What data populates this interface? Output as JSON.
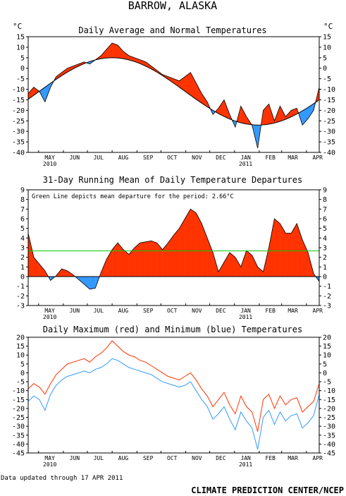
{
  "title": "BARROW, ALASKA",
  "footer": {
    "updated": "Data updated through 17 APR 2011",
    "credit": "CLIMATE PREDICTION CENTER/NCEP"
  },
  "months": [
    "MAY",
    "JUN",
    "JUL",
    "AUG",
    "SEP",
    "OCT",
    "NOV",
    "DEC",
    "JAN",
    "FEB",
    "MAR",
    "APR"
  ],
  "years": {
    "first": "2010",
    "second": "2011"
  },
  "chart_data": [
    {
      "type": "area",
      "title": "Daily Average and Normal Temperatures",
      "unit_left": "°C",
      "unit_right": "°C",
      "ylim": [
        -40,
        15
      ],
      "yticks": [
        15,
        10,
        5,
        0,
        -5,
        -10,
        -15,
        -20,
        -25,
        -30,
        -35,
        -40
      ],
      "x_start": "2010-04-18",
      "x_end": "2011-04-17",
      "colors": {
        "above": "#ff3300",
        "below": "#3399ff",
        "normal": "#000000"
      },
      "normal_min": {
        "date": "2011-02-01",
        "value": -27
      },
      "normal_max": {
        "date": "2010-08-01",
        "value": 5
      },
      "daily_average": [
        {
          "x": "2010-04-18",
          "y": -12
        },
        {
          "x": "2010-04-25",
          "y": -9
        },
        {
          "x": "2010-05-02",
          "y": -11
        },
        {
          "x": "2010-05-09",
          "y": -16
        },
        {
          "x": "2010-05-16",
          "y": -9
        },
        {
          "x": "2010-05-23",
          "y": -4
        },
        {
          "x": "2010-05-30",
          "y": -2
        },
        {
          "x": "2010-06-06",
          "y": 0
        },
        {
          "x": "2010-06-13",
          "y": 1
        },
        {
          "x": "2010-06-20",
          "y": 2
        },
        {
          "x": "2010-06-27",
          "y": 3
        },
        {
          "x": "2010-07-04",
          "y": 2
        },
        {
          "x": "2010-07-11",
          "y": 4
        },
        {
          "x": "2010-07-18",
          "y": 6
        },
        {
          "x": "2010-07-25",
          "y": 9
        },
        {
          "x": "2010-08-01",
          "y": 12
        },
        {
          "x": "2010-08-08",
          "y": 11
        },
        {
          "x": "2010-08-15",
          "y": 8
        },
        {
          "x": "2010-08-22",
          "y": 6
        },
        {
          "x": "2010-08-29",
          "y": 5
        },
        {
          "x": "2010-09-05",
          "y": 4
        },
        {
          "x": "2010-09-12",
          "y": 3
        },
        {
          "x": "2010-09-19",
          "y": 1
        },
        {
          "x": "2010-09-26",
          "y": -1
        },
        {
          "x": "2010-10-03",
          "y": -3
        },
        {
          "x": "2010-10-10",
          "y": -4
        },
        {
          "x": "2010-10-17",
          "y": -5
        },
        {
          "x": "2010-10-24",
          "y": -6
        },
        {
          "x": "2010-10-31",
          "y": -4
        },
        {
          "x": "2010-11-07",
          "y": -2
        },
        {
          "x": "2010-11-14",
          "y": -7
        },
        {
          "x": "2010-11-21",
          "y": -12
        },
        {
          "x": "2010-11-28",
          "y": -16
        },
        {
          "x": "2010-12-05",
          "y": -22
        },
        {
          "x": "2010-12-12",
          "y": -19
        },
        {
          "x": "2010-12-19",
          "y": -15
        },
        {
          "x": "2010-12-26",
          "y": -22
        },
        {
          "x": "2011-01-02",
          "y": -28
        },
        {
          "x": "2011-01-09",
          "y": -18
        },
        {
          "x": "2011-01-16",
          "y": -23
        },
        {
          "x": "2011-01-23",
          "y": -27
        },
        {
          "x": "2011-01-30",
          "y": -38
        },
        {
          "x": "2011-02-06",
          "y": -20
        },
        {
          "x": "2011-02-13",
          "y": -17
        },
        {
          "x": "2011-02-20",
          "y": -25
        },
        {
          "x": "2011-02-27",
          "y": -18
        },
        {
          "x": "2011-03-06",
          "y": -23
        },
        {
          "x": "2011-03-13",
          "y": -20
        },
        {
          "x": "2011-03-20",
          "y": -19
        },
        {
          "x": "2011-03-27",
          "y": -27
        },
        {
          "x": "2011-04-03",
          "y": -24
        },
        {
          "x": "2011-04-10",
          "y": -20
        },
        {
          "x": "2011-04-17",
          "y": -9
        }
      ]
    },
    {
      "type": "area",
      "title": "31-Day Running Mean of Daily Temperature Departures",
      "annotation": "Green Line depicts mean departure for the period: 2.66°C",
      "mean_departure": 2.66,
      "ylim": [
        -3,
        9
      ],
      "yticks": [
        9,
        8,
        7,
        6,
        5,
        4,
        3,
        2,
        1,
        0,
        -1,
        -2,
        -3
      ],
      "x_start": "2010-04-18",
      "x_end": "2011-04-17",
      "colors": {
        "above": "#ff3300",
        "below": "#3399ff",
        "mean_line": "#00cc00"
      },
      "departure": [
        {
          "x": "2010-04-18",
          "y": 4.5
        },
        {
          "x": "2010-04-25",
          "y": 2.0
        },
        {
          "x": "2010-05-02",
          "y": 1.3
        },
        {
          "x": "2010-05-09",
          "y": 0.6
        },
        {
          "x": "2010-05-16",
          "y": -0.4
        },
        {
          "x": "2010-05-23",
          "y": 0.1
        },
        {
          "x": "2010-05-30",
          "y": 0.8
        },
        {
          "x": "2010-06-06",
          "y": 0.6
        },
        {
          "x": "2010-06-13",
          "y": 0.2
        },
        {
          "x": "2010-06-20",
          "y": -0.3
        },
        {
          "x": "2010-06-27",
          "y": -0.8
        },
        {
          "x": "2010-07-04",
          "y": -1.3
        },
        {
          "x": "2010-07-11",
          "y": -1.2
        },
        {
          "x": "2010-07-18",
          "y": 0.4
        },
        {
          "x": "2010-07-25",
          "y": 1.8
        },
        {
          "x": "2010-08-01",
          "y": 2.8
        },
        {
          "x": "2010-08-08",
          "y": 3.5
        },
        {
          "x": "2010-08-15",
          "y": 2.8
        },
        {
          "x": "2010-08-22",
          "y": 2.3
        },
        {
          "x": "2010-08-29",
          "y": 3.0
        },
        {
          "x": "2010-09-05",
          "y": 3.5
        },
        {
          "x": "2010-09-12",
          "y": 3.6
        },
        {
          "x": "2010-09-19",
          "y": 3.7
        },
        {
          "x": "2010-09-26",
          "y": 3.5
        },
        {
          "x": "2010-10-03",
          "y": 2.8
        },
        {
          "x": "2010-10-10",
          "y": 3.5
        },
        {
          "x": "2010-10-17",
          "y": 4.3
        },
        {
          "x": "2010-10-24",
          "y": 5.0
        },
        {
          "x": "2010-10-31",
          "y": 6.0
        },
        {
          "x": "2010-11-07",
          "y": 7.0
        },
        {
          "x": "2010-11-14",
          "y": 6.6
        },
        {
          "x": "2010-11-21",
          "y": 5.5
        },
        {
          "x": "2010-11-28",
          "y": 4.0
        },
        {
          "x": "2010-12-05",
          "y": 2.5
        },
        {
          "x": "2010-12-12",
          "y": 0.5
        },
        {
          "x": "2010-12-19",
          "y": 1.5
        },
        {
          "x": "2010-12-26",
          "y": 2.5
        },
        {
          "x": "2011-01-02",
          "y": 2.0
        },
        {
          "x": "2011-01-09",
          "y": 1.0
        },
        {
          "x": "2011-01-16",
          "y": 2.7
        },
        {
          "x": "2011-01-23",
          "y": 2.2
        },
        {
          "x": "2011-01-30",
          "y": 1.0
        },
        {
          "x": "2011-02-06",
          "y": 0.5
        },
        {
          "x": "2011-02-13",
          "y": 3.0
        },
        {
          "x": "2011-02-20",
          "y": 6.0
        },
        {
          "x": "2011-02-27",
          "y": 5.5
        },
        {
          "x": "2011-03-06",
          "y": 4.5
        },
        {
          "x": "2011-03-13",
          "y": 4.5
        },
        {
          "x": "2011-03-20",
          "y": 5.5
        },
        {
          "x": "2011-03-27",
          "y": 3.8
        },
        {
          "x": "2011-04-03",
          "y": 2.5
        },
        {
          "x": "2011-04-10",
          "y": 0.3
        },
        {
          "x": "2011-04-17",
          "y": -0.5
        }
      ]
    },
    {
      "type": "line",
      "title": "Daily Maximum (red) and Minimum (blue) Temperatures",
      "ylim": [
        -45,
        20
      ],
      "yticks": [
        20,
        15,
        10,
        5,
        0,
        -5,
        -10,
        -15,
        -20,
        -25,
        -30,
        -35,
        -40,
        -45
      ],
      "x_start": "2010-04-18",
      "x_end": "2011-04-17",
      "series": [
        {
          "name": "Maximum",
          "color": "#ff3300",
          "values": [
            {
              "x": "2010-04-18",
              "y": -9
            },
            {
              "x": "2010-04-25",
              "y": -6
            },
            {
              "x": "2010-05-02",
              "y": -8
            },
            {
              "x": "2010-05-09",
              "y": -12
            },
            {
              "x": "2010-05-16",
              "y": -6
            },
            {
              "x": "2010-05-23",
              "y": -1
            },
            {
              "x": "2010-05-30",
              "y": 2
            },
            {
              "x": "2010-06-06",
              "y": 5
            },
            {
              "x": "2010-06-13",
              "y": 6
            },
            {
              "x": "2010-06-20",
              "y": 7
            },
            {
              "x": "2010-06-27",
              "y": 8
            },
            {
              "x": "2010-07-04",
              "y": 6
            },
            {
              "x": "2010-07-11",
              "y": 9
            },
            {
              "x": "2010-07-18",
              "y": 11
            },
            {
              "x": "2010-07-25",
              "y": 14
            },
            {
              "x": "2010-08-01",
              "y": 18
            },
            {
              "x": "2010-08-08",
              "y": 15
            },
            {
              "x": "2010-08-15",
              "y": 12
            },
            {
              "x": "2010-08-22",
              "y": 10
            },
            {
              "x": "2010-08-29",
              "y": 9
            },
            {
              "x": "2010-09-05",
              "y": 7
            },
            {
              "x": "2010-09-12",
              "y": 6
            },
            {
              "x": "2010-09-19",
              "y": 4
            },
            {
              "x": "2010-09-26",
              "y": 2
            },
            {
              "x": "2010-10-03",
              "y": 0
            },
            {
              "x": "2010-10-10",
              "y": -2
            },
            {
              "x": "2010-10-17",
              "y": -3
            },
            {
              "x": "2010-10-24",
              "y": -4
            },
            {
              "x": "2010-10-31",
              "y": -2
            },
            {
              "x": "2010-11-07",
              "y": 0
            },
            {
              "x": "2010-11-14",
              "y": -4
            },
            {
              "x": "2010-11-21",
              "y": -9
            },
            {
              "x": "2010-11-28",
              "y": -13
            },
            {
              "x": "2010-12-05",
              "y": -19
            },
            {
              "x": "2010-12-12",
              "y": -15
            },
            {
              "x": "2010-12-19",
              "y": -11
            },
            {
              "x": "2010-12-26",
              "y": -18
            },
            {
              "x": "2011-01-02",
              "y": -23
            },
            {
              "x": "2011-01-09",
              "y": -13
            },
            {
              "x": "2011-01-16",
              "y": -19
            },
            {
              "x": "2011-01-23",
              "y": -22
            },
            {
              "x": "2011-01-30",
              "y": -33
            },
            {
              "x": "2011-02-06",
              "y": -15
            },
            {
              "x": "2011-02-13",
              "y": -12
            },
            {
              "x": "2011-02-20",
              "y": -20
            },
            {
              "x": "2011-02-27",
              "y": -13
            },
            {
              "x": "2011-03-06",
              "y": -18
            },
            {
              "x": "2011-03-13",
              "y": -15
            },
            {
              "x": "2011-03-20",
              "y": -14
            },
            {
              "x": "2011-03-27",
              "y": -22
            },
            {
              "x": "2011-04-03",
              "y": -19
            },
            {
              "x": "2011-04-10",
              "y": -16
            },
            {
              "x": "2011-04-17",
              "y": -6
            }
          ]
        },
        {
          "name": "Minimum",
          "color": "#3399ff",
          "values": [
            {
              "x": "2010-04-18",
              "y": -16
            },
            {
              "x": "2010-04-25",
              "y": -13
            },
            {
              "x": "2010-05-02",
              "y": -15
            },
            {
              "x": "2010-05-09",
              "y": -21
            },
            {
              "x": "2010-05-16",
              "y": -12
            },
            {
              "x": "2010-05-23",
              "y": -7
            },
            {
              "x": "2010-05-30",
              "y": -4
            },
            {
              "x": "2010-06-06",
              "y": -2
            },
            {
              "x": "2010-06-13",
              "y": -1
            },
            {
              "x": "2010-06-20",
              "y": 0
            },
            {
              "x": "2010-06-27",
              "y": 1
            },
            {
              "x": "2010-07-04",
              "y": 0
            },
            {
              "x": "2010-07-11",
              "y": 2
            },
            {
              "x": "2010-07-18",
              "y": 3
            },
            {
              "x": "2010-07-25",
              "y": 5
            },
            {
              "x": "2010-08-01",
              "y": 8
            },
            {
              "x": "2010-08-08",
              "y": 7
            },
            {
              "x": "2010-08-15",
              "y": 5
            },
            {
              "x": "2010-08-22",
              "y": 3
            },
            {
              "x": "2010-08-29",
              "y": 2
            },
            {
              "x": "2010-09-05",
              "y": 1
            },
            {
              "x": "2010-09-12",
              "y": 0
            },
            {
              "x": "2010-09-19",
              "y": -1
            },
            {
              "x": "2010-09-26",
              "y": -3
            },
            {
              "x": "2010-10-03",
              "y": -5
            },
            {
              "x": "2010-10-10",
              "y": -6
            },
            {
              "x": "2010-10-17",
              "y": -7
            },
            {
              "x": "2010-10-24",
              "y": -8
            },
            {
              "x": "2010-10-31",
              "y": -7
            },
            {
              "x": "2010-11-07",
              "y": -5
            },
            {
              "x": "2010-11-14",
              "y": -10
            },
            {
              "x": "2010-11-21",
              "y": -15
            },
            {
              "x": "2010-11-28",
              "y": -19
            },
            {
              "x": "2010-12-05",
              "y": -26
            },
            {
              "x": "2010-12-12",
              "y": -23
            },
            {
              "x": "2010-12-19",
              "y": -19
            },
            {
              "x": "2010-12-26",
              "y": -26
            },
            {
              "x": "2011-01-02",
              "y": -32
            },
            {
              "x": "2011-01-09",
              "y": -22
            },
            {
              "x": "2011-01-16",
              "y": -27
            },
            {
              "x": "2011-01-23",
              "y": -31
            },
            {
              "x": "2011-01-30",
              "y": -43
            },
            {
              "x": "2011-02-06",
              "y": -25
            },
            {
              "x": "2011-02-13",
              "y": -21
            },
            {
              "x": "2011-02-20",
              "y": -29
            },
            {
              "x": "2011-02-27",
              "y": -22
            },
            {
              "x": "2011-03-06",
              "y": -27
            },
            {
              "x": "2011-03-13",
              "y": -24
            },
            {
              "x": "2011-03-20",
              "y": -23
            },
            {
              "x": "2011-03-27",
              "y": -31
            },
            {
              "x": "2011-04-03",
              "y": -28
            },
            {
              "x": "2011-04-10",
              "y": -24
            },
            {
              "x": "2011-04-17",
              "y": -12
            }
          ]
        }
      ]
    }
  ]
}
